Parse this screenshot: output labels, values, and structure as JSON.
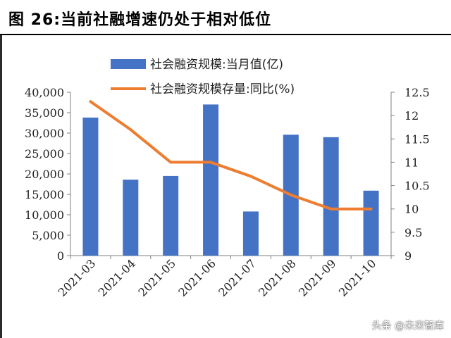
{
  "header": {
    "title": "图 26:当前社融增速仍处于相对低位"
  },
  "watermark": "头条 @未来智库",
  "colors": {
    "bar": "#4472C4",
    "line": "#ED7D31",
    "axis": "#808080"
  },
  "chart_data": {
    "type": "bar",
    "categories": [
      "2021-03",
      "2021-04",
      "2021-05",
      "2021-06",
      "2021-07",
      "2021-08",
      "2021-09",
      "2021-10"
    ],
    "series": [
      {
        "name": "社会融资规模:当月值(亿)",
        "type": "bar",
        "axis": "left",
        "values": [
          33800,
          18600,
          19500,
          37000,
          10800,
          29600,
          29000,
          15900
        ]
      },
      {
        "name": "社会融资规模存量:同比(%)",
        "type": "line",
        "axis": "right",
        "values": [
          12.3,
          11.7,
          11.0,
          11.0,
          10.7,
          10.3,
          10.0,
          10.0
        ]
      }
    ],
    "y_left": {
      "min": 0,
      "max": 40000,
      "step": 5000,
      "tick_labels": [
        "0",
        "5,000",
        "10,000",
        "15,000",
        "20,000",
        "25,000",
        "30,000",
        "35,000",
        "40,000"
      ]
    },
    "y_right": {
      "min": 9,
      "max": 12.5,
      "step": 0.5,
      "tick_labels": [
        "9",
        "9.5",
        "10",
        "10.5",
        "11",
        "11.5",
        "12",
        "12.5"
      ]
    },
    "legend_position": "top",
    "grid": false
  }
}
